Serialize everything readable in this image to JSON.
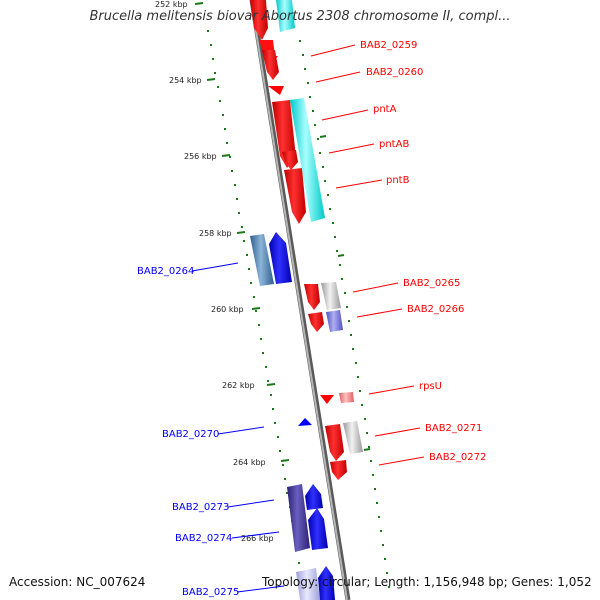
{
  "title": "Brucella melitensis biovar Abortus 2308 chromosome II, compl...",
  "footer": {
    "accession": "Accession: NC_007624",
    "topology": "Topology: circular; Length: 1,156,948 bp; Genes: 1,052"
  },
  "colors": {
    "forward_gene": "#ff0000",
    "reverse_gene": "#0000ff",
    "backbone": "#8a8a8a",
    "tick": "#1a7a1a",
    "cyan_cds": "#00e5e5",
    "steel_cds": "#4a7fb0",
    "indigo_cds": "#3a2f8a",
    "grey_cds": "#c8c8c8"
  },
  "kbp_ticks": [
    "252 kbp",
    "254 kbp",
    "256 kbp",
    "258 kbp",
    "260 kbp",
    "262 kbp",
    "264 kbp",
    "266 kbp"
  ],
  "genes_right": [
    "BAB2_0259",
    "BAB2_0260",
    "pntA",
    "pntAB",
    "pntB",
    "BAB2_0265",
    "BAB2_0266",
    "rpsU",
    "BAB2_0271",
    "BAB2_0272"
  ],
  "genes_left": [
    "BAB2_0264",
    "BAB2_0270",
    "BAB2_0273",
    "BAB2_0274",
    "BAB2_0275"
  ]
}
